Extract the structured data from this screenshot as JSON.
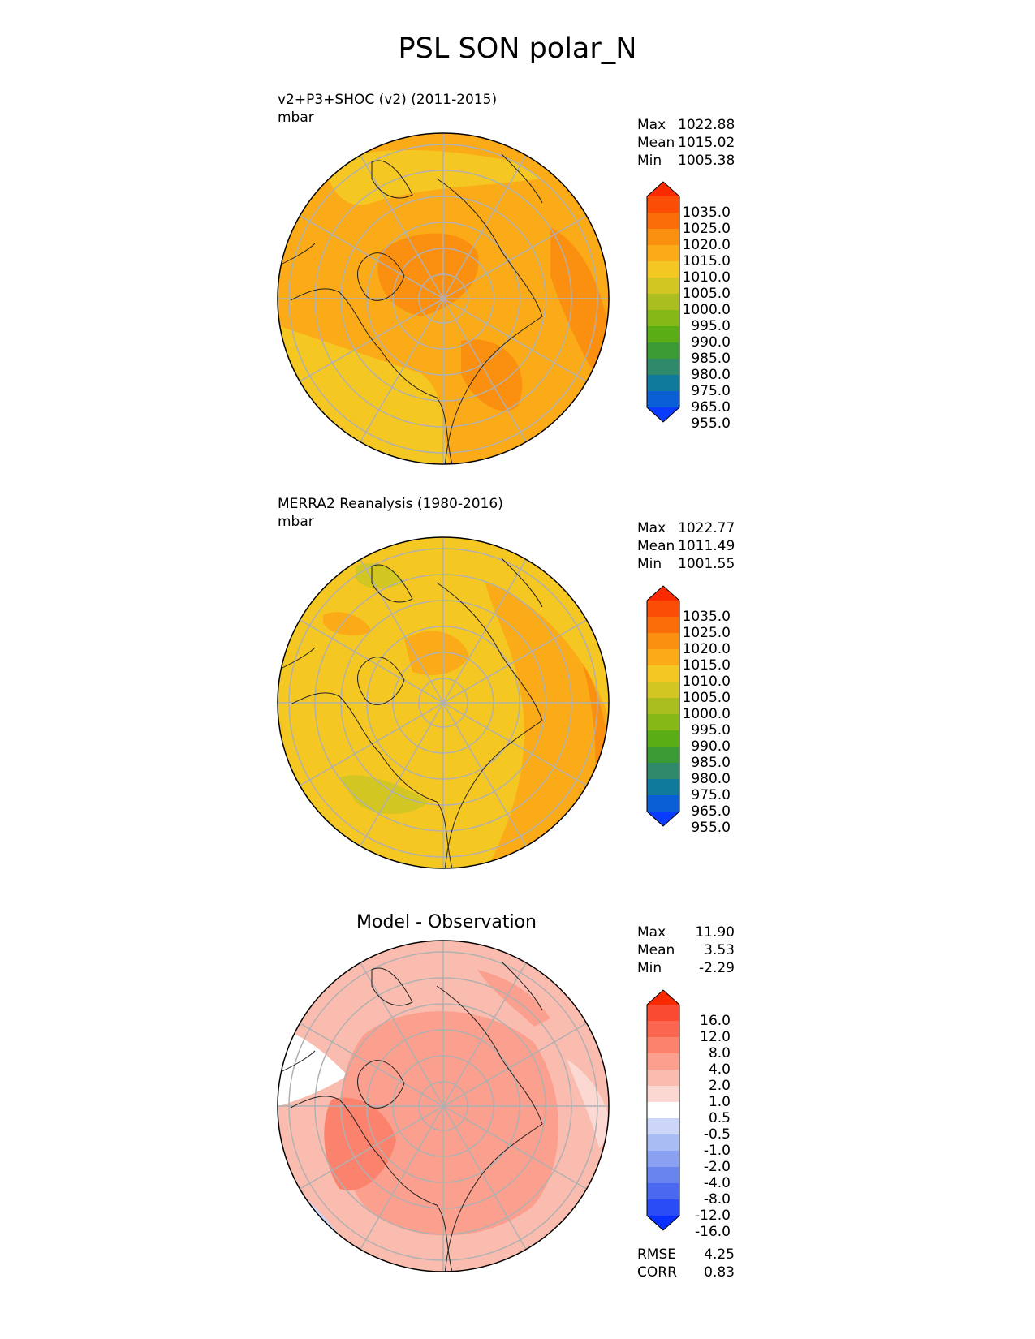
{
  "figure": {
    "title": "PSL SON polar_N"
  },
  "panels": [
    {
      "title": "v2+P3+SHOC (v2) (2011-2015)",
      "units": "mbar",
      "stats": {
        "max_label": "Max",
        "max": "1022.88",
        "mean_label": "Mean",
        "mean": "1015.02",
        "min_label": "Min",
        "min": "1005.38"
      },
      "colorbar": [
        "1035.0",
        "1025.0",
        "1020.0",
        "1015.0",
        "1010.0",
        "1005.0",
        "1000.0",
        "995.0",
        "990.0",
        "985.0",
        "980.0",
        "975.0",
        "965.0",
        "955.0"
      ]
    },
    {
      "title": "MERRA2 Reanalysis (1980-2016)",
      "units": "mbar",
      "stats": {
        "max_label": "Max",
        "max": "1022.77",
        "mean_label": "Mean",
        "mean": "1011.49",
        "min_label": "Min",
        "min": "1001.55"
      },
      "colorbar": [
        "1035.0",
        "1025.0",
        "1020.0",
        "1015.0",
        "1010.0",
        "1005.0",
        "1000.0",
        "995.0",
        "990.0",
        "985.0",
        "980.0",
        "975.0",
        "965.0",
        "955.0"
      ]
    },
    {
      "center_title": "Model - Observation",
      "stats": {
        "max_label": "Max",
        "max": "11.90",
        "mean_label": "Mean",
        "mean": "3.53",
        "min_label": "Min",
        "min": "-2.29"
      },
      "colorbar": [
        "16.0",
        "12.0",
        "8.0",
        "4.0",
        "2.0",
        "1.0",
        "0.5",
        "-0.5",
        "-1.0",
        "-2.0",
        "-4.0",
        "-8.0",
        "-12.0",
        "-16.0"
      ],
      "metrics": {
        "rmse_label": "RMSE",
        "rmse": "4.25",
        "corr_label": "CORR",
        "corr": "0.83"
      }
    }
  ],
  "chart_data": [
    {
      "type": "heatmap",
      "projection": "north polar stereographic",
      "title": "v2+P3+SHOC (v2) (2011-2015)",
      "units": "mbar",
      "levels": [
        955,
        965,
        975,
        980,
        985,
        990,
        995,
        1000,
        1005,
        1010,
        1015,
        1020,
        1025,
        1035
      ],
      "colors": [
        "#0a3cff",
        "#0b5fd6",
        "#0f7a9b",
        "#2e8a6a",
        "#3c9a34",
        "#5aad15",
        "#86b918",
        "#aabf1f",
        "#d2c623",
        "#f5c722",
        "#fbab17",
        "#fb8f0f",
        "#fb6d08",
        "#fb4d06",
        "#fb2a00"
      ],
      "stats": {
        "max": 1022.88,
        "mean": 1015.02,
        "min": 1005.38
      }
    },
    {
      "type": "heatmap",
      "projection": "north polar stereographic",
      "title": "MERRA2 Reanalysis (1980-2016)",
      "units": "mbar",
      "levels": [
        955,
        965,
        975,
        980,
        985,
        990,
        995,
        1000,
        1005,
        1010,
        1015,
        1020,
        1025,
        1035
      ],
      "colors": [
        "#0a3cff",
        "#0b5fd6",
        "#0f7a9b",
        "#2e8a6a",
        "#3c9a34",
        "#5aad15",
        "#86b918",
        "#aabf1f",
        "#d2c623",
        "#f5c722",
        "#fbab17",
        "#fb8f0f",
        "#fb6d08",
        "#fb4d06",
        "#fb2a00"
      ],
      "stats": {
        "max": 1022.77,
        "mean": 1011.49,
        "min": 1001.55
      }
    },
    {
      "type": "heatmap",
      "projection": "north polar stereographic",
      "title": "Model - Observation",
      "levels": [
        -16,
        -12,
        -8,
        -4,
        -2,
        -1,
        -0.5,
        0.5,
        1,
        2,
        4,
        8,
        12,
        16
      ],
      "colors": [
        "#0a30ff",
        "#2a4cf6",
        "#4a68f0",
        "#6a84ee",
        "#8aa0f0",
        "#aabcf4",
        "#ccd6f8",
        "#ffffff",
        "#fbd8d2",
        "#fbbcb0",
        "#fb9f8e",
        "#fb836e",
        "#fa6650",
        "#fa4a32",
        "#fa2a00"
      ],
      "stats": {
        "max": 11.9,
        "mean": 3.53,
        "min": -2.29
      },
      "metrics": {
        "rmse": 4.25,
        "corr": 0.83
      }
    }
  ]
}
